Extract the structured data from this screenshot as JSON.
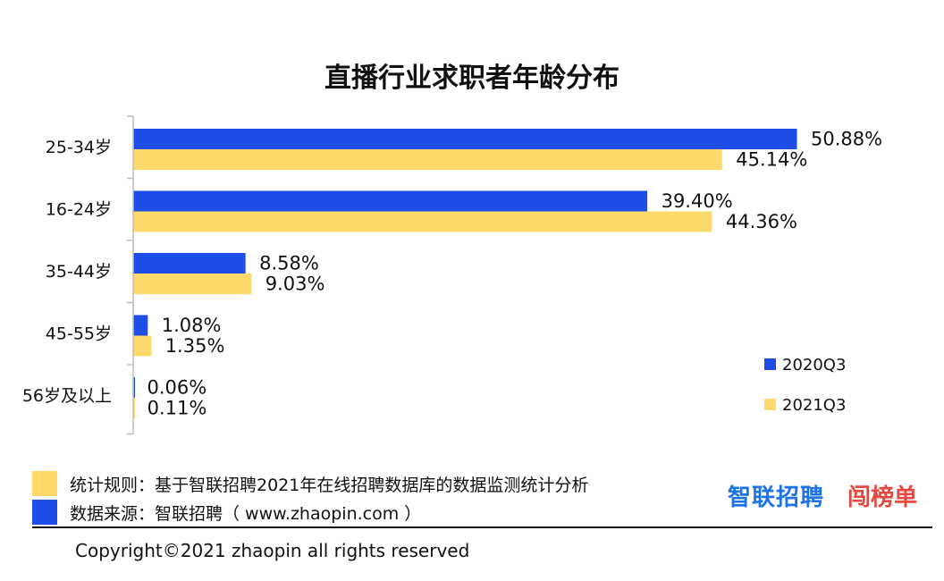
{
  "chart_data": {
    "type": "bar",
    "orientation": "horizontal",
    "title": "直播行业求职者年龄分布",
    "categories": [
      "25-34岁",
      "16-24岁",
      "35-44岁",
      "45-55岁",
      "56岁及以上"
    ],
    "series": [
      {
        "name": "2020Q3",
        "color": "#1f4de8",
        "values": [
          50.88,
          39.4,
          8.58,
          1.08,
          0.06
        ],
        "labels": [
          "50.88%",
          "39.40%",
          "8.58%",
          "1.08%",
          "0.06%"
        ]
      },
      {
        "name": "2021Q3",
        "color": "#fdd86a",
        "values": [
          45.14,
          44.36,
          9.03,
          1.35,
          0.11
        ],
        "labels": [
          "45.14%",
          "44.36%",
          "9.03%",
          "1.35%",
          "0.11%"
        ]
      }
    ],
    "value_unit": "%",
    "legend_position": "bottom-right",
    "grid": false
  },
  "footer": {
    "rule_label": "统计规则：基于智联招聘2021年在线招聘数据库的数据监测统计分析",
    "rule_color": "#fdd86a",
    "source_label": "数据来源：智联招聘（ www.zhaopin.com ）",
    "source_color": "#1f4de8"
  },
  "brands": {
    "zhaopin": "智联招聘",
    "taobang": "闯榜单"
  },
  "copyright": "Copyright©2021 zhaopin all rights reserved"
}
